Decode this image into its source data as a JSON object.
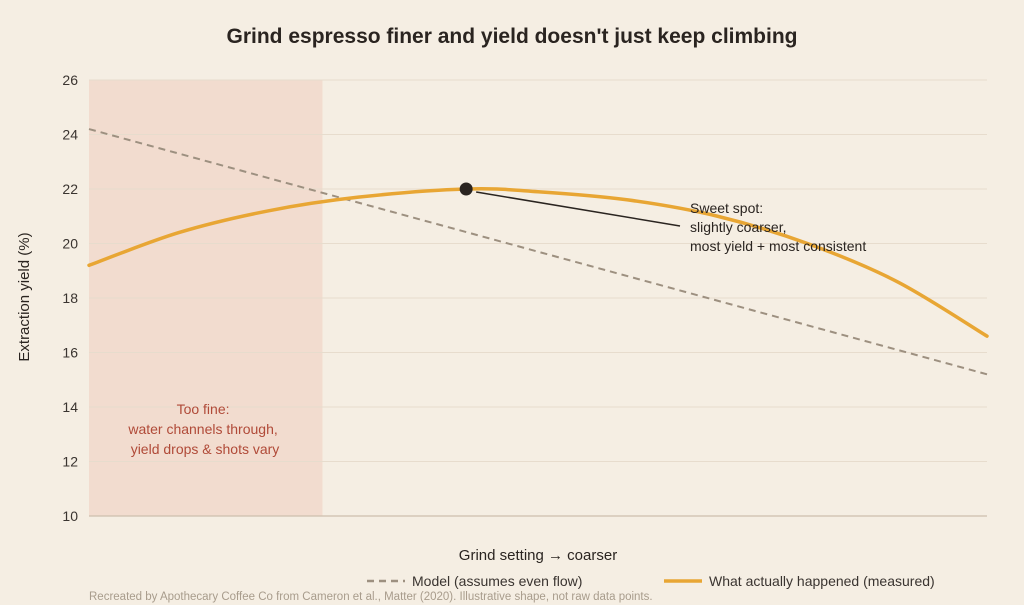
{
  "colors": {
    "background": "#f5eee3",
    "grid": "#e7dccd",
    "zone_fill": "#f2dccf",
    "model_line": "#9d9080",
    "measured_line": "#e8a634",
    "zone_text": "#b04a38",
    "annotation": "#2a2420",
    "source_text": "#a89c8c"
  },
  "icons": {
    "model_legend": "dashed-line-swatch",
    "measured_legend": "solid-line-swatch"
  },
  "chart_data": {
    "type": "line",
    "title": "Grind espresso finer and yield doesn't just keep climbing",
    "xlabel": "Grind setting → coarser",
    "ylabel": "Extraction yield (%)",
    "x_numeric": false,
    "xlim": [
      0,
      1
    ],
    "ylim": [
      10,
      26
    ],
    "yticks": [
      10,
      12,
      14,
      16,
      18,
      20,
      22,
      24,
      26
    ],
    "grid": true,
    "legend_position": "bottom",
    "series": [
      {
        "name": "Model (assumes even flow)",
        "style": "dashed",
        "color": "#9d9080",
        "x": [
          0,
          1
        ],
        "y": [
          24.2,
          15.2
        ]
      },
      {
        "name": "What actually happened (measured)",
        "style": "solid",
        "color": "#e8a634",
        "x": [
          0,
          0.1,
          0.2,
          0.3,
          0.42,
          0.5,
          0.6,
          0.7,
          0.8,
          0.9,
          1.0
        ],
        "y": [
          19.2,
          20.4,
          21.2,
          21.7,
          22.0,
          21.9,
          21.6,
          21.0,
          20.0,
          18.6,
          16.6
        ]
      }
    ],
    "zone": {
      "x_start": 0,
      "x_end": 0.26,
      "label": [
        "Too fine:",
        "water channels through,",
        "yield drops & shots vary"
      ]
    },
    "highlight_point": {
      "x": 0.42,
      "y": 22.0,
      "label": [
        "Sweet spot:",
        "slightly coarser,",
        "most yield + most consistent"
      ]
    },
    "source": "Recreated by Apothecary Coffee Co from Cameron et al., Matter (2020). Illustrative shape, not raw data points."
  }
}
